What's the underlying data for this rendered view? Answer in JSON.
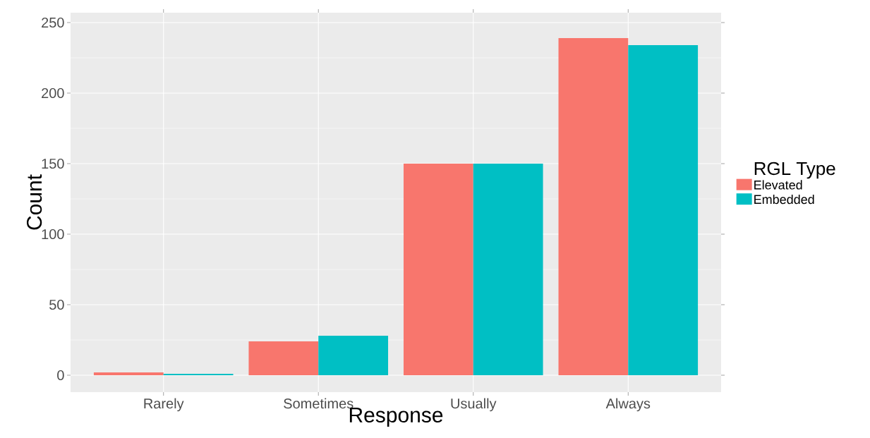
{
  "chart_data": {
    "type": "bar",
    "xlabel": "Response",
    "ylabel": "Count",
    "legend_title": "RGL Type",
    "categories": [
      "Rarely",
      "Sometimes",
      "Usually",
      "Always"
    ],
    "series": [
      {
        "name": "Elevated",
        "color": "#f8766d",
        "values": [
          2,
          24,
          150,
          239
        ]
      },
      {
        "name": "Embedded",
        "color": "#00bfc4",
        "values": [
          1,
          28,
          150,
          234
        ]
      }
    ],
    "ylim": [
      -12,
      257
    ],
    "yticks": [
      0,
      50,
      100,
      150,
      200,
      250
    ],
    "grid": true,
    "legend": "right"
  }
}
